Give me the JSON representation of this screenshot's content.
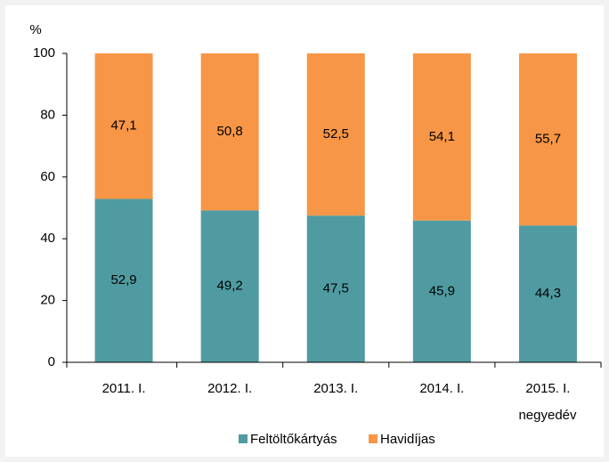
{
  "chart_data": {
    "type": "stacked_bar",
    "ylabel": "%",
    "xlabel": "negyedév",
    "categories": [
      "2011. I.",
      "2012. I.",
      "2013. I.",
      "2014. I.",
      "2015. I."
    ],
    "series": [
      {
        "name": "Feltöltőkártyás",
        "color": "#4f9ba1",
        "values": [
          52.9,
          49.2,
          47.5,
          45.9,
          44.3
        ],
        "value_labels": [
          "52,9",
          "49,2",
          "47,5",
          "45,9",
          "44,3"
        ]
      },
      {
        "name": "Havidíjas",
        "color": "#f79646",
        "values": [
          47.1,
          50.8,
          52.5,
          54.1,
          55.7
        ],
        "value_labels": [
          "47,1",
          "50,8",
          "52,5",
          "54,1",
          "55,7"
        ]
      }
    ],
    "ylim": [
      0,
      100
    ],
    "yticks": [
      0,
      20,
      40,
      60,
      80,
      100
    ],
    "legend": "bottom"
  }
}
